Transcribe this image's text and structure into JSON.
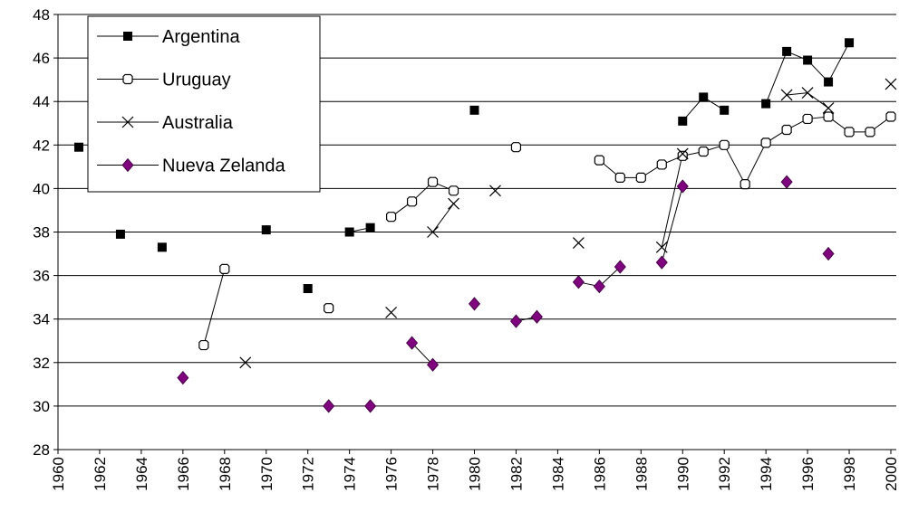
{
  "chart_data": {
    "type": "line",
    "x": [
      1960,
      1961,
      1962,
      1963,
      1964,
      1965,
      1966,
      1967,
      1968,
      1969,
      1970,
      1971,
      1972,
      1973,
      1974,
      1975,
      1976,
      1977,
      1978,
      1979,
      1980,
      1981,
      1982,
      1983,
      1984,
      1985,
      1986,
      1987,
      1988,
      1989,
      1990,
      1991,
      1992,
      1993,
      1994,
      1995,
      1996,
      1997,
      1998,
      1999,
      2000
    ],
    "series": [
      {
        "name": "Argentina",
        "color": "#000000",
        "marker": "square",
        "values": [
          null,
          41.9,
          null,
          37.9,
          null,
          37.3,
          null,
          null,
          null,
          null,
          38.1,
          null,
          35.4,
          null,
          38.0,
          38.2,
          null,
          null,
          null,
          null,
          43.6,
          null,
          null,
          null,
          null,
          null,
          null,
          null,
          null,
          null,
          43.1,
          44.2,
          43.6,
          null,
          43.9,
          46.3,
          45.9,
          44.9,
          46.7,
          null,
          null
        ]
      },
      {
        "name": "Uruguay",
        "color": "#ffffff",
        "marker": "open",
        "values": [
          null,
          null,
          null,
          null,
          null,
          null,
          null,
          32.8,
          36.3,
          null,
          null,
          null,
          null,
          34.5,
          null,
          null,
          38.7,
          39.4,
          40.3,
          39.9,
          null,
          null,
          41.9,
          null,
          null,
          null,
          41.3,
          40.5,
          40.5,
          41.1,
          41.5,
          41.7,
          42.0,
          40.2,
          42.1,
          42.7,
          43.2,
          43.3,
          42.6,
          42.6,
          43.3
        ]
      },
      {
        "name": "Australia",
        "color": "#000000",
        "marker": "cross",
        "values": [
          null,
          null,
          null,
          null,
          null,
          null,
          null,
          null,
          null,
          32.0,
          null,
          null,
          null,
          null,
          null,
          null,
          34.3,
          null,
          38.0,
          39.3,
          null,
          39.9,
          null,
          null,
          null,
          37.5,
          null,
          null,
          null,
          37.3,
          41.6,
          null,
          null,
          null,
          null,
          44.3,
          44.4,
          43.7,
          null,
          null,
          44.8
        ]
      },
      {
        "name": "Nueva Zelanda",
        "color": "#800080",
        "marker": "diamond",
        "values": [
          null,
          null,
          null,
          null,
          null,
          null,
          31.3,
          null,
          null,
          null,
          null,
          null,
          null,
          30.0,
          null,
          30.0,
          null,
          32.9,
          31.9,
          null,
          34.7,
          null,
          33.9,
          34.1,
          null,
          35.7,
          35.5,
          36.4,
          null,
          36.6,
          40.1,
          null,
          null,
          null,
          null,
          40.3,
          null,
          37.0,
          null,
          null,
          null
        ]
      }
    ],
    "xlim": [
      1960,
      2000
    ],
    "xticks": [
      1960,
      1962,
      1964,
      1966,
      1968,
      1970,
      1972,
      1974,
      1976,
      1978,
      1980,
      1982,
      1984,
      1986,
      1988,
      1990,
      1992,
      1994,
      1996,
      1998,
      2000
    ],
    "ylim": [
      28,
      48
    ],
    "yticks": [
      28,
      30,
      32,
      34,
      36,
      38,
      40,
      42,
      44,
      46,
      48
    ],
    "grid": true,
    "legend": "upper left"
  }
}
